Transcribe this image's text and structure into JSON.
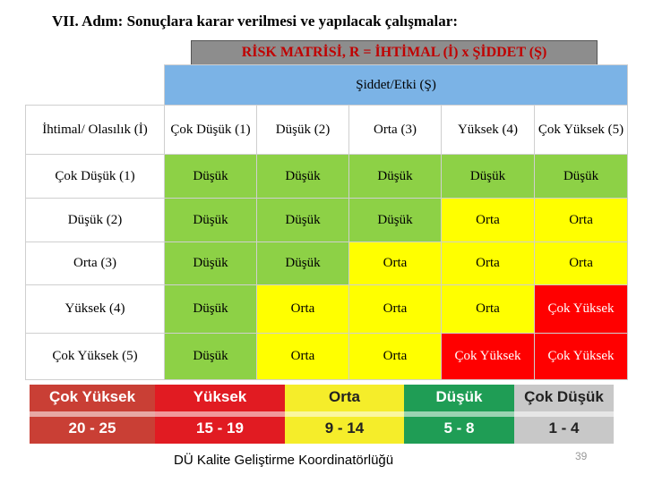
{
  "heading": "VII. Adım: Sonuçlara karar verilmesi ve yapılacak çalışmalar:",
  "title": "RİSK MATRİSİ, R = İHTİMAL (İ) x ŞİDDET (Ş)",
  "severity_header": "Şiddet/Etki (Ş)",
  "corner_header": "İhtimal/ Olasılık (İ)",
  "columns": [
    "Çok Düşük (1)",
    "Düşük (2)",
    "Orta (3)",
    "Yüksek (4)",
    "Çok Yüksek (5)"
  ],
  "rows": [
    {
      "label": "Çok Düşük (1)",
      "cells": [
        "Düşük",
        "Düşük",
        "Düşük",
        "Düşük",
        "Düşük"
      ]
    },
    {
      "label": "Düşük (2)",
      "cells": [
        "Düşük",
        "Düşük",
        "Düşük",
        "Orta",
        "Orta"
      ]
    },
    {
      "label": "Orta (3)",
      "cells": [
        "Düşük",
        "Düşük",
        "Orta",
        "Orta",
        "Orta"
      ]
    },
    {
      "label": "Yüksek (4)",
      "cells": [
        "Düşük",
        "Orta",
        "Orta",
        "Orta",
        "Çok Yüksek"
      ]
    },
    {
      "label": "Çok Yüksek (5)",
      "cells": [
        "Düşük",
        "Orta",
        "Orta",
        "Çok Yüksek",
        "Çok Yüksek"
      ]
    }
  ],
  "legend": [
    {
      "label": "Çok Yüksek",
      "range": "20 - 25",
      "color": "#c93f35"
    },
    {
      "label": "Yüksek",
      "range": "15 - 19",
      "color": "#e11b22"
    },
    {
      "label": "Orta",
      "range": "9 - 14",
      "color": "#f5ed2a"
    },
    {
      "label": "Düşük",
      "range": "5 - 8",
      "color": "#1f9d55"
    },
    {
      "label": "Çok Düşük",
      "range": "1 - 4",
      "color": "#c8c8c8"
    }
  ],
  "colors": {
    "low": "#8dd146",
    "medium": "#ffff00",
    "high": "#ff0000",
    "header_band": "#7bb3e6"
  },
  "footer": "DÜ Kalite Geliştirme Koordinatörlüğü",
  "page_number": "39"
}
